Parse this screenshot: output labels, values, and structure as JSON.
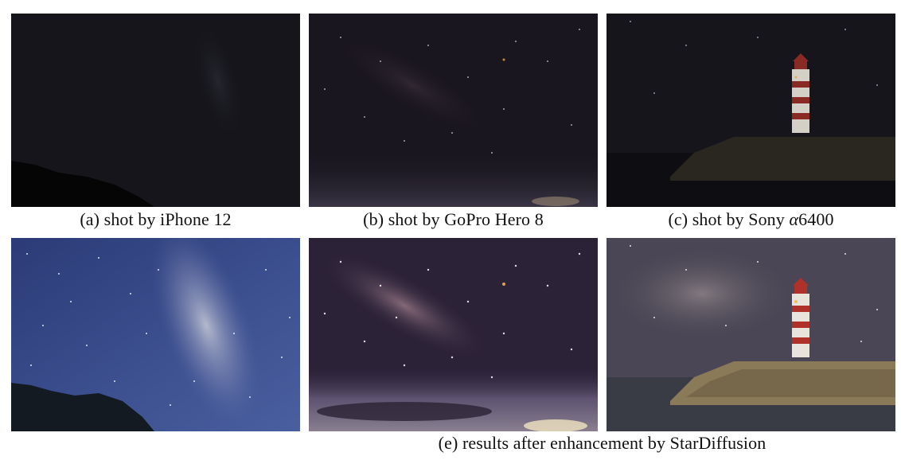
{
  "figure": {
    "captions": {
      "a": "(a) shot by iPhone 12",
      "b": "(b) shot by GoPro Hero 8",
      "c_prefix": "(c) shot by Sony ",
      "c_symbol": "α",
      "c_suffix": "6400",
      "e": "(e)  results after enhancement by StarDiffusion"
    },
    "colors": {
      "raw_sky": "#0f0f17",
      "iphone_enhanced_sky": "#3a4c8c",
      "gopro_enhanced_sky": "#2c2238",
      "sony_enhanced_sky": "#4a4655",
      "lighthouse_red": "#b0302a",
      "lighthouse_white": "#e8e4dc"
    }
  }
}
